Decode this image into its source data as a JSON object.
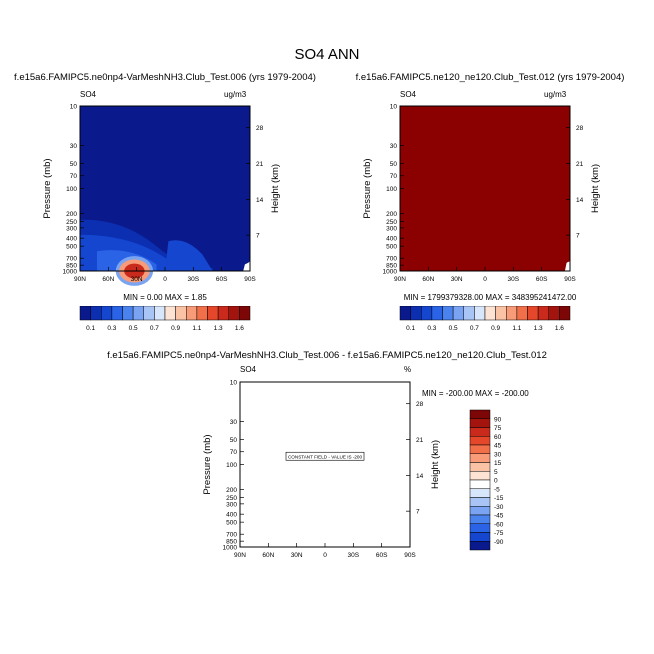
{
  "title": "SO4 ANN",
  "colors": {
    "dark_red": "#8b0000",
    "ramp_blue": [
      "#0a1a8c",
      "#0b2fb0",
      "#1446d0",
      "#2a63e6",
      "#4a82ee",
      "#7aa4f2",
      "#a9c5f6",
      "#d7e6fb"
    ],
    "ramp_red": [
      "#fde3d4",
      "#fbc3a6",
      "#f79b78",
      "#f1704a",
      "#e4472a",
      "#c92a1c",
      "#a3140f",
      "#7d0606"
    ]
  },
  "panels": [
    {
      "subtitle": "f.e15a6.FAMIPC5.ne0np4-VarMeshNH3.Club_Test.006 (yrs 1979-2004)",
      "var": "SO4",
      "units": "ug/m3",
      "minmax": "MIN =   0.00  MAX =   1.85",
      "fill": "field"
    },
    {
      "subtitle": "f.e15a6.FAMIPC5.ne120_ne120.Club_Test.012 (yrs 1979-2004)",
      "var": "SO4",
      "units": "ug/m3",
      "minmax": "MIN = 1799379328.00  MAX = 348395241472.00",
      "fill": "solid"
    },
    {
      "subtitle": "f.e15a6.FAMIPC5.ne0np4-VarMeshNH3.Club_Test.006 - f.e15a6.FAMIPC5.ne120_ne120.Club_Test.012",
      "var": "SO4",
      "units": "%",
      "minmax": "MIN = -200.00  MAX = -200.00",
      "constant_label": "CONSTANT FIELD - VALUE IS -200",
      "fill": "empty"
    }
  ],
  "chart_data": {
    "type": "heatmap",
    "xlabel": "",
    "ylabel": "Pressure (mb)",
    "y2label": "Height (km)",
    "x_ticks": [
      "90N",
      "60N",
      "30N",
      "0",
      "30S",
      "60S",
      "90S"
    ],
    "x_values": [
      90,
      60,
      30,
      0,
      -30,
      -60,
      -90
    ],
    "y_ticks": [
      "10",
      "30",
      "50",
      "70",
      "100",
      "200",
      "250",
      "300",
      "400",
      "500",
      "700",
      "850",
      "1000"
    ],
    "y_values": [
      10,
      30,
      50,
      70,
      100,
      200,
      250,
      300,
      400,
      500,
      700,
      850,
      1000
    ],
    "y2_ticks": [
      "28",
      "21",
      "14",
      "7"
    ],
    "y2_values": [
      28,
      21,
      14,
      7
    ],
    "ylim": [
      1000,
      10
    ],
    "y_scale": "log",
    "colorbar_top": {
      "labels": [
        "0.1",
        "0.3",
        "0.5",
        "0.7",
        "0.9",
        "1.1",
        "1.3",
        "1.6"
      ],
      "levels": [
        0.1,
        0.2,
        0.3,
        0.4,
        0.5,
        0.6,
        0.7,
        0.8,
        0.9,
        1.0,
        1.1,
        1.2,
        1.3,
        1.4,
        1.6
      ]
    },
    "colorbar_diff": {
      "labels": [
        "90",
        "75",
        "60",
        "45",
        "30",
        "15",
        "5",
        "0",
        "-5",
        "-15",
        "-30",
        "-45",
        "-60",
        "-75",
        "-90"
      ],
      "levels": [
        90,
        75,
        60,
        45,
        30,
        15,
        5,
        0,
        -5,
        -15,
        -30,
        -45,
        -60,
        -75,
        -90
      ]
    }
  }
}
